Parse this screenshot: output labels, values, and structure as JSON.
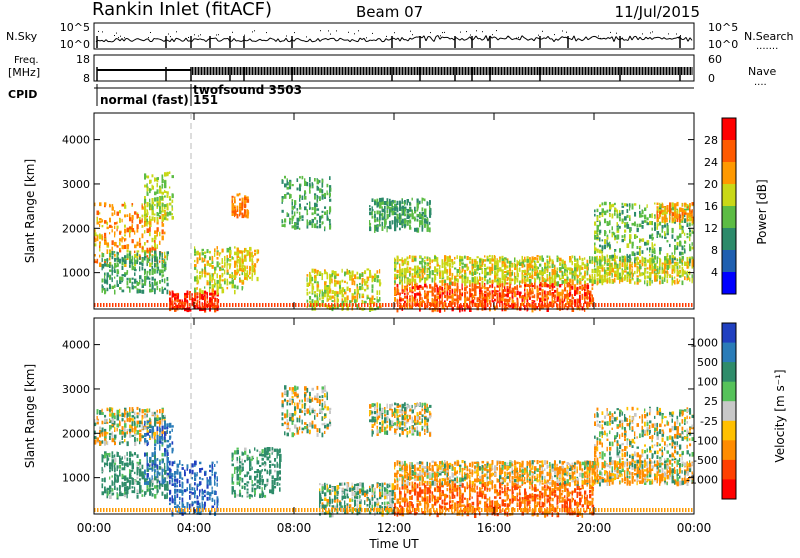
{
  "header": {
    "site": "Rankin Inlet (fitACF)",
    "beam": "Beam 07",
    "date": "11/Jul/2015"
  },
  "noise_panel": {
    "left_label": "N.Sky",
    "right_label": "N.Search",
    "right_dots": "·······",
    "y_ticks_left": [
      "10^5",
      "10^0"
    ],
    "y_ticks_right": [
      "10^5",
      "10^0"
    ]
  },
  "freq_panel": {
    "left_label_line1": "Freq.",
    "left_label_line2": "[MHz]",
    "right_label": "Nave",
    "right_dots": "····",
    "y_ticks_left": [
      "18",
      "8"
    ],
    "y_ticks_right": [
      "60",
      "0"
    ]
  },
  "cpid_panel": {
    "label": "CPID",
    "modes": [
      {
        "text": "normal (fast)",
        "start_hour": 0.0
      },
      {
        "text": "151",
        "start_hour": 3.9
      },
      {
        "text": "twofsound 3503",
        "start_hour": 3.9
      }
    ]
  },
  "chart_data": [
    {
      "type": "heatmap",
      "parameter": "power",
      "ylabel": "Slant Range [km]",
      "xlabel": "",
      "x_range_hours": [
        0,
        24
      ],
      "x_ticks": [
        "00:00",
        "04:00",
        "08:00",
        "12:00",
        "16:00",
        "20:00",
        "00:00"
      ],
      "y_ticks": [
        "1000",
        "2000",
        "3000",
        "4000"
      ],
      "ylim": [
        180,
        4600
      ],
      "colorbar": {
        "label": "Power [dB]",
        "ticks": [
          "4",
          "8",
          "12",
          "16",
          "20",
          "24",
          "28"
        ],
        "colors": [
          "#0000ff",
          "#1f5fb0",
          "#2c8a6a",
          "#5cbc44",
          "#c9d817",
          "#ff9900",
          "#ff5a00",
          "#ff0000"
        ]
      },
      "regions": [
        {
          "t0": 0.0,
          "t1": 2.9,
          "r0": 1200,
          "r1": 2600,
          "level": 20
        },
        {
          "t0": 0.3,
          "t1": 3.0,
          "r0": 600,
          "r1": 1500,
          "level": 10
        },
        {
          "t0": 2.0,
          "t1": 3.2,
          "r0": 2200,
          "r1": 3300,
          "level": 14
        },
        {
          "t0": 3.0,
          "t1": 5.0,
          "r0": 200,
          "r1": 600,
          "level": 26
        },
        {
          "t0": 4.0,
          "t1": 6.0,
          "r0": 600,
          "r1": 1600,
          "level": 16
        },
        {
          "t0": 5.6,
          "t1": 6.6,
          "r0": 900,
          "r1": 1600,
          "level": 18
        },
        {
          "t0": 5.5,
          "t1": 6.2,
          "r0": 2300,
          "r1": 2800,
          "level": 22
        },
        {
          "t0": 7.5,
          "t1": 9.5,
          "r0": 2000,
          "r1": 3200,
          "level": 10
        },
        {
          "t0": 8.5,
          "t1": 11.5,
          "r0": 200,
          "r1": 1100,
          "level": 16
        },
        {
          "t0": 11.0,
          "t1": 13.5,
          "r0": 2000,
          "r1": 2700,
          "level": 10
        },
        {
          "t0": 12.0,
          "t1": 20.0,
          "r0": 200,
          "r1": 800,
          "level": 24
        },
        {
          "t0": 12.0,
          "t1": 24.0,
          "r0": 800,
          "r1": 1400,
          "level": 16
        },
        {
          "t0": 20.0,
          "t1": 24.0,
          "r0": 1300,
          "r1": 2600,
          "level": 12
        },
        {
          "t0": 22.5,
          "t1": 24.0,
          "r0": 2200,
          "r1": 2600,
          "level": 20
        }
      ]
    },
    {
      "type": "heatmap",
      "parameter": "velocity",
      "ylabel": "Slant Range [km]",
      "xlabel": "Time UT",
      "x_range_hours": [
        0,
        24
      ],
      "x_ticks": [
        "00:00",
        "04:00",
        "08:00",
        "12:00",
        "16:00",
        "20:00",
        "00:00"
      ],
      "y_ticks": [
        "1000",
        "2000",
        "3000",
        "4000"
      ],
      "ylim": [
        180,
        4600
      ],
      "colorbar": {
        "label": "Velocity [m s⁻¹]",
        "ticks": [
          "1000",
          "500",
          "100",
          "25",
          "-25",
          "-100",
          "-500",
          "-1000"
        ],
        "colors": [
          "#2040c0",
          "#2a7cb8",
          "#2f8c6a",
          "#56c25a",
          "#c8c8c8",
          "#ffc000",
          "#ff8c00",
          "#ff4000",
          "#ff0000"
        ]
      },
      "regions": [
        {
          "t0": 0.0,
          "t1": 2.9,
          "r0": 1800,
          "r1": 2600,
          "level": 0
        },
        {
          "t0": 0.3,
          "t1": 3.0,
          "r0": 600,
          "r1": 1600,
          "level": 150
        },
        {
          "t0": 2.0,
          "t1": 3.2,
          "r0": 900,
          "r1": 2300,
          "level": 700
        },
        {
          "t0": 3.0,
          "t1": 5.0,
          "r0": 200,
          "r1": 1400,
          "level": 700
        },
        {
          "t0": 5.5,
          "t1": 7.5,
          "r0": 600,
          "r1": 1700,
          "level": 150
        },
        {
          "t0": 7.5,
          "t1": 9.5,
          "r0": 2000,
          "r1": 3100,
          "level": 0
        },
        {
          "t0": 11.0,
          "t1": 13.5,
          "r0": 2000,
          "r1": 2700,
          "level": 0
        },
        {
          "t0": 9.0,
          "t1": 12.0,
          "r0": 200,
          "r1": 900,
          "level": 60
        },
        {
          "t0": 12.0,
          "t1": 20.0,
          "r0": 200,
          "r1": 900,
          "level": -300
        },
        {
          "t0": 12.0,
          "t1": 24.0,
          "r0": 900,
          "r1": 1400,
          "level": -60
        },
        {
          "t0": 20.0,
          "t1": 24.0,
          "r0": 1300,
          "r1": 2600,
          "level": 0
        }
      ]
    }
  ],
  "colors": {
    "axis": "#000000",
    "background": "#ffffff",
    "marker_line": "#bbbbbb"
  }
}
